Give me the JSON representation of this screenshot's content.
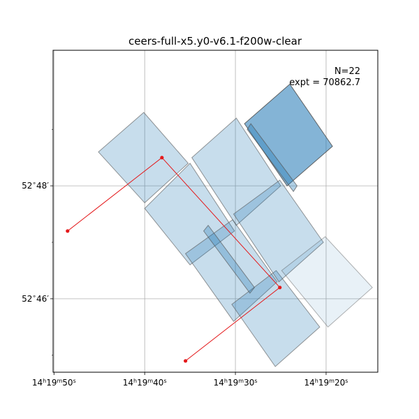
{
  "chart_data": {
    "type": "footprint-map",
    "title": "ceers-full-x5.y0-v6.1-f200w-clear",
    "annotation": {
      "count_text": "N=22",
      "exposure_text": "expt = 70862.7"
    },
    "grid": true,
    "xlabel": "",
    "ylabel": "",
    "xlim_ra_sec": [
      50.1,
      14.3
    ],
    "ylim_dec_min": [
      44.7,
      50.4
    ],
    "x_ticks": [
      {
        "value": 50,
        "h": "14",
        "m": "19",
        "s": "50"
      },
      {
        "value": 40,
        "h": "14",
        "m": "19",
        "s": "40"
      },
      {
        "value": 30,
        "h": "14",
        "m": "19",
        "s": "30"
      },
      {
        "value": 20,
        "h": "14",
        "m": "19",
        "s": "20"
      }
    ],
    "y_ticks": [
      {
        "value": 48,
        "deg": "52",
        "arcmin": "48"
      },
      {
        "value": 46,
        "deg": "52",
        "arcmin": "46"
      }
    ],
    "y_minor_ticks": [
      45,
      47,
      49
    ],
    "colors": {
      "fill": "#1f77b4",
      "edge": "#555555",
      "track": "#e41a1c"
    },
    "footprints": [
      {
        "alpha": 0.25,
        "corners": [
          [
            45.1,
            48.6
          ],
          [
            40.1,
            49.3
          ],
          [
            35.2,
            48.4
          ],
          [
            40.0,
            47.7
          ]
        ]
      },
      {
        "alpha": 0.25,
        "corners": [
          [
            40.0,
            47.6
          ],
          [
            35.0,
            48.4
          ],
          [
            30.1,
            47.2
          ],
          [
            35.0,
            46.6
          ]
        ]
      },
      {
        "alpha": 0.25,
        "corners": [
          [
            35.5,
            46.8
          ],
          [
            30.3,
            47.4
          ],
          [
            25.4,
            46.3
          ],
          [
            30.2,
            45.6
          ]
        ]
      },
      {
        "alpha": 0.25,
        "corners": [
          [
            30.4,
            45.9
          ],
          [
            25.5,
            46.5
          ],
          [
            20.7,
            45.5
          ],
          [
            25.6,
            44.8
          ]
        ]
      },
      {
        "alpha": 0.25,
        "corners": [
          [
            34.8,
            48.5
          ],
          [
            29.9,
            49.2
          ],
          [
            25.0,
            48.0
          ],
          [
            29.9,
            47.3
          ]
        ]
      },
      {
        "alpha": 0.25,
        "corners": [
          [
            30.2,
            47.5
          ],
          [
            25.1,
            48.1
          ],
          [
            20.3,
            47.0
          ],
          [
            25.2,
            46.3
          ]
        ]
      },
      {
        "alpha": 0.55,
        "corners": [
          [
            29.0,
            49.1
          ],
          [
            24.0,
            49.8
          ],
          [
            19.3,
            48.7
          ],
          [
            24.3,
            48.0
          ]
        ]
      },
      {
        "alpha": 0.35,
        "corners": [
          [
            28.7,
            49.0
          ],
          [
            28.3,
            49.1
          ],
          [
            23.2,
            48.0
          ],
          [
            23.6,
            47.9
          ]
        ]
      },
      {
        "alpha": 0.3,
        "corners": [
          [
            33.5,
            47.2
          ],
          [
            33.0,
            47.3
          ],
          [
            27.9,
            46.2
          ],
          [
            28.4,
            46.1
          ]
        ]
      },
      {
        "alpha": 0.1,
        "corners": [
          [
            24.9,
            46.5
          ],
          [
            20.1,
            47.1
          ],
          [
            14.9,
            46.2
          ],
          [
            19.8,
            45.5
          ]
        ]
      }
    ],
    "track": [
      {
        "ra_sec": 48.5,
        "dec_min": 47.2
      },
      {
        "ra_sec": 38.1,
        "dec_min": 48.5
      },
      {
        "ra_sec": 25.1,
        "dec_min": 46.2
      },
      {
        "ra_sec": 35.5,
        "dec_min": 44.9
      }
    ]
  }
}
